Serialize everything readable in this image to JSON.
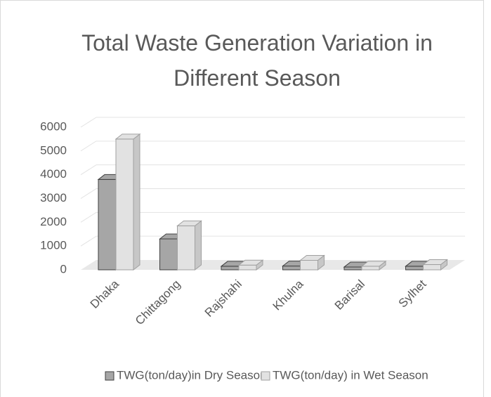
{
  "chart_data": {
    "type": "bar3d",
    "title": "Total Waste Generation Variation in Different Season",
    "categories": [
      "Dhaka",
      "Chittagong",
      "Rajshahi",
      "Khulna",
      "Barisal",
      "Sylhet"
    ],
    "series": [
      {
        "name": "TWG(ton/day)in Dry Season",
        "color": "#a6a6a6",
        "values": [
          3800,
          1300,
          150,
          160,
          120,
          150
        ]
      },
      {
        "name": "TWG(ton/day) in Wet Season",
        "color": "#e2e2e2",
        "values": [
          5500,
          1850,
          200,
          400,
          150,
          220
        ]
      }
    ],
    "ylim": [
      0,
      6000
    ],
    "yticks": [
      0,
      1000,
      2000,
      3000,
      4000,
      5000,
      6000
    ],
    "grid": true,
    "legend": "bottom"
  }
}
